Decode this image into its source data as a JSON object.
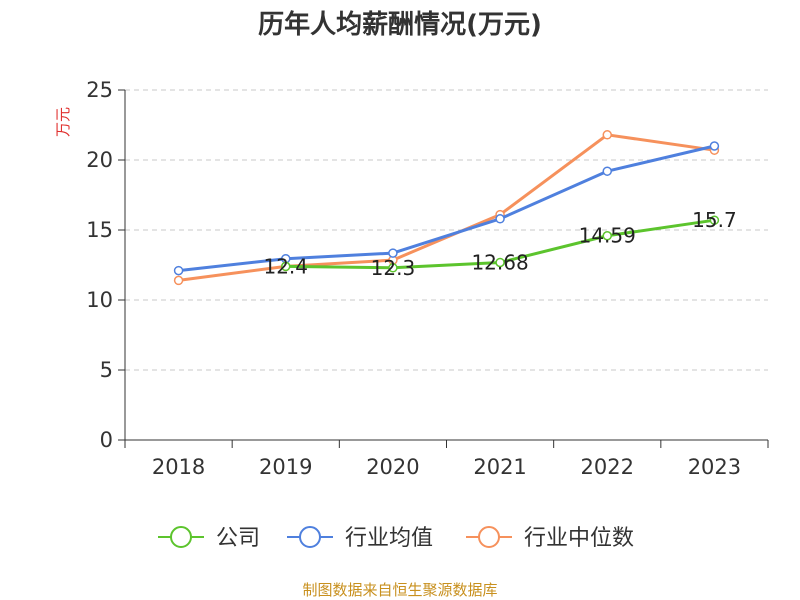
{
  "chart_data": {
    "type": "line",
    "title": "历年人均薪酬情况(万元)",
    "ylabel": "万元",
    "xlabel": "",
    "categories": [
      "2018",
      "2019",
      "2020",
      "2021",
      "2022",
      "2023"
    ],
    "ylim": [
      0,
      25
    ],
    "yticks": [
      0,
      5,
      10,
      15,
      20,
      25
    ],
    "grid": true,
    "legend_position": "bottom",
    "series": [
      {
        "name": "公司",
        "color": "#5cc42d",
        "values": [
          null,
          12.4,
          12.3,
          12.68,
          14.59,
          15.7
        ],
        "labels": [
          "",
          "12.4",
          "12.3",
          "12.68",
          "14.59",
          "15.7"
        ]
      },
      {
        "name": "行业均值",
        "color": "#4f80de",
        "values": [
          12.1,
          12.95,
          13.35,
          15.8,
          19.2,
          21.0
        ]
      },
      {
        "name": "行业中位数",
        "color": "#f6915c",
        "values": [
          11.4,
          12.4,
          12.85,
          16.1,
          21.8,
          20.7
        ]
      }
    ],
    "source": "制图数据来自恒生聚源数据库"
  }
}
